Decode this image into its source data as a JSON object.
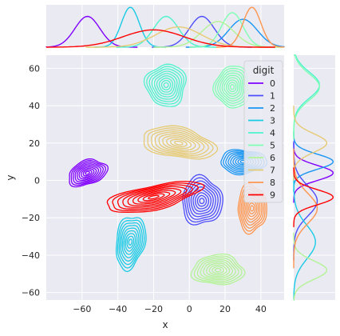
{
  "chart_data": {
    "type": "contour",
    "title": "",
    "xlabel": "x",
    "ylabel": "y",
    "xlim": [
      -80,
      53
    ],
    "ylim": [
      -64,
      67
    ],
    "xticks": [
      -60,
      -40,
      -20,
      0,
      20,
      40
    ],
    "yticks": [
      -60,
      -40,
      -20,
      0,
      20,
      40,
      60
    ],
    "grid": true,
    "legend": {
      "title": "digit",
      "placement": "top-right"
    },
    "series": [
      {
        "name": "0",
        "color": "#8000ff",
        "center": [
          -57,
          4
        ],
        "spread": [
          7,
          4
        ],
        "rotation": -20
      },
      {
        "name": "1",
        "color": "#4d4dfc",
        "center": [
          7,
          -11
        ],
        "spread": [
          7,
          8
        ],
        "rotation": 0
      },
      {
        "name": "2",
        "color": "#1996f3",
        "center": [
          30,
          10
        ],
        "spread": [
          8,
          4
        ],
        "rotation": 0
      },
      {
        "name": "3",
        "color": "#1acbe5",
        "center": [
          -33,
          -33
        ],
        "spread": [
          5,
          9
        ],
        "rotation": 10
      },
      {
        "name": "4",
        "color": "#4df3ce",
        "center": [
          -13,
          51
        ],
        "spread": [
          7,
          7
        ],
        "rotation": 0
      },
      {
        "name": "5",
        "color": "#80ffb4",
        "center": [
          24,
          50
        ],
        "spread": [
          6,
          7
        ],
        "rotation": 0
      },
      {
        "name": "6",
        "color": "#b3f396",
        "center": [
          16,
          -48
        ],
        "spread": [
          9,
          5
        ],
        "rotation": 0
      },
      {
        "name": "7",
        "color": "#e6cb74",
        "center": [
          -6,
          20
        ],
        "spread": [
          13,
          5
        ],
        "rotation": 10
      },
      {
        "name": "8",
        "color": "#ff964f",
        "center": [
          35,
          -15
        ],
        "spread": [
          5,
          8
        ],
        "rotation": 0
      },
      {
        "name": "9",
        "color": "#ff0000",
        "center": [
          -20,
          -9
        ],
        "spread": [
          17,
          4
        ],
        "rotation": -12
      }
    ],
    "marginal_peaks_x": [
      {
        "name": "0",
        "value": -57
      },
      {
        "name": "1",
        "value": 7
      },
      {
        "name": "2",
        "value": 30
      },
      {
        "name": "3",
        "value": -33
      },
      {
        "name": "4",
        "value": -13
      },
      {
        "name": "5",
        "value": 24
      },
      {
        "name": "6",
        "value": 16
      },
      {
        "name": "7",
        "value": -6
      },
      {
        "name": "8",
        "value": 35
      },
      {
        "name": "9",
        "value": -20
      }
    ]
  }
}
